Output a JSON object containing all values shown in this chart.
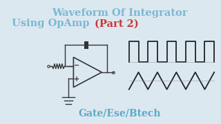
{
  "bg_color": "#1a1a2e",
  "bg_color2": "#e8edf0",
  "title_line1": "Waveform Of Integrator",
  "title_line2_main": "Using OpAmp ",
  "title_line2_part": "(Part 2)",
  "subtitle": "Gate/Ese/Btech",
  "title_color": "#7ab8d4",
  "part_color": "#cc3333",
  "subtitle_color": "#5aaac8",
  "circuit_color": "#333333",
  "wave_color": "#222222"
}
